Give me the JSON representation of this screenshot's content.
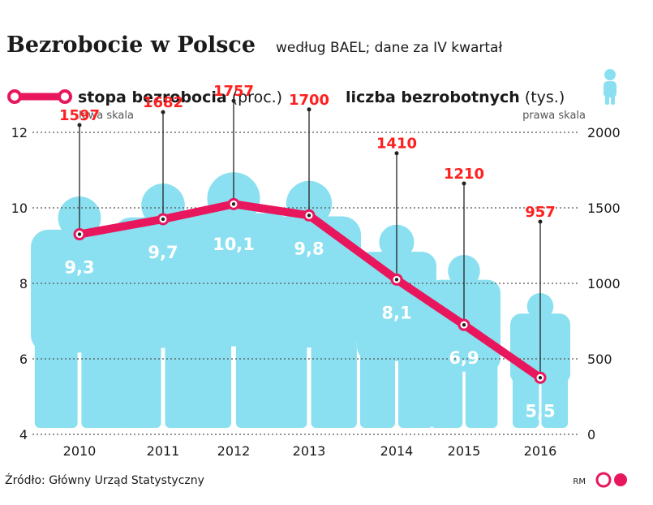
{
  "header": {
    "title": "Bezrobocie w Polsce",
    "subtitle": "według BAEL; dane za IV kwartał"
  },
  "legend": {
    "rate_label": "stopa bezrobocia",
    "rate_unit": "(proc.)",
    "rate_scale": "lewa skala",
    "count_label": "liczba bezrobotnych",
    "count_unit": "(tys.)",
    "count_scale": "prawa skala"
  },
  "footer": {
    "source": "Źródło: Główny Urząd Statystyczny",
    "author": "RM",
    "brand": "GP"
  },
  "colors": {
    "line": "#e8175d",
    "figure": "#8ae0f0",
    "count_label": "#ff2020",
    "text": "#1a1a1a",
    "grid": "#555555"
  },
  "chart_data": {
    "type": "line",
    "title": "Bezrobocie w Polsce",
    "categories": [
      "2010",
      "2011",
      "2012",
      "2013",
      "2014",
      "2015",
      "2016"
    ],
    "series": [
      {
        "name": "stopa bezrobocia (proc.)",
        "axis": "left",
        "values": [
          9.3,
          9.7,
          10.1,
          9.8,
          8.1,
          6.9,
          5.5
        ],
        "labels": [
          "9,3",
          "9,7",
          "10,1",
          "9,8",
          "8,1",
          "6,9",
          "5,5"
        ]
      },
      {
        "name": "liczba bezrobotnych (tys.)",
        "axis": "right",
        "values": [
          1597,
          1682,
          1757,
          1700,
          1410,
          1210,
          957
        ],
        "labels": [
          "1597",
          "1682",
          "1757",
          "1700",
          "1410",
          "1210",
          "957"
        ]
      }
    ],
    "y_left": {
      "min": 4,
      "max": 12,
      "ticks": [
        "4",
        "6",
        "8",
        "10",
        "12"
      ]
    },
    "y_right": {
      "min": 0,
      "max": 2000,
      "ticks": [
        "0",
        "500",
        "1000",
        "1500",
        "2000"
      ]
    },
    "grid": true
  }
}
